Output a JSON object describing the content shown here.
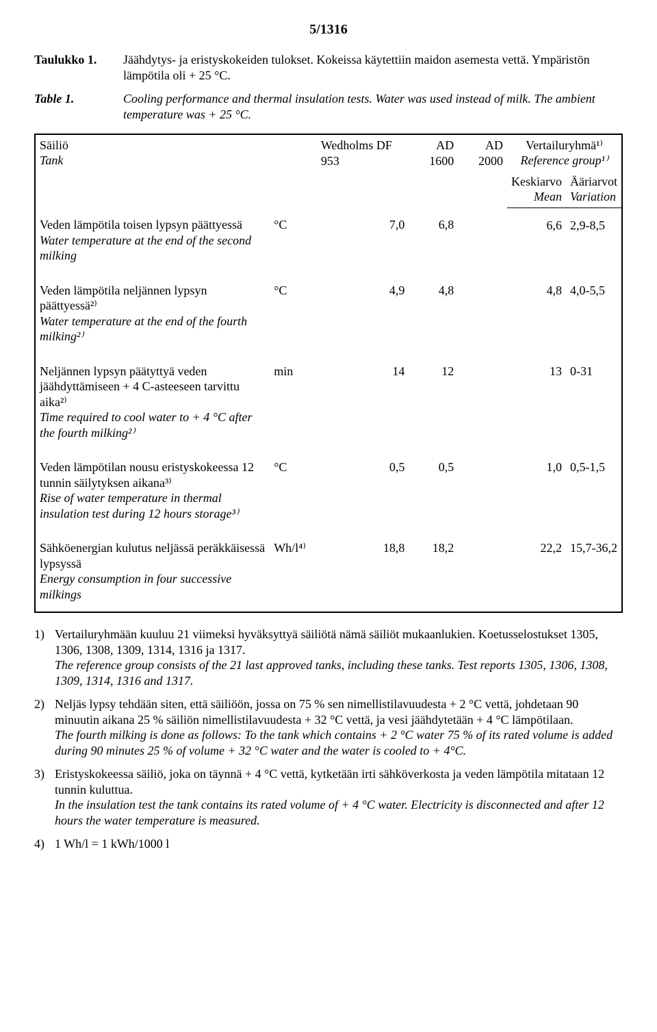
{
  "page_number": "5/1316",
  "captions": [
    {
      "label": "Taulukko 1.",
      "text": "Jäähdytys- ja eristyskokeiden tulokset. Kokeissa käytettiin maidon asemesta vettä. Ympäristön lämpötila oli + 25 °C.",
      "italic": false
    },
    {
      "label": "Table 1.",
      "text": "Cooling performance and thermal insulation tests. Water was used instead of milk. The ambient temperature was + 25 °C.",
      "italic": true
    }
  ],
  "header": {
    "tank_fi": "Säiliö",
    "tank_en": "Tank",
    "col1": "Wedholms DF 953",
    "col2": "AD 1600",
    "col3": "AD 2000",
    "ref_fi": "Vertailuryhmä¹⁾",
    "ref_en": "Reference group¹⁾",
    "mean_fi": "Keskiarvo",
    "mean_en": "Mean",
    "var_fi": "Ääriarvot",
    "var_en": "Variation"
  },
  "rows": [
    {
      "desc_fi": "Veden lämpötila toisen lypsyn päättyessä",
      "desc_en": "Water temperature at the end of the second milking",
      "unit": "°C",
      "v1": "7,0",
      "v2": "6,8",
      "mean": "6,6",
      "var": "2,9-8,5"
    },
    {
      "desc_fi": "Veden lämpötila neljännen lypsyn päättyessä²⁾",
      "desc_en": "Water temperature at the end of the fourth milking²⁾",
      "unit": "°C",
      "v1": "4,9",
      "v2": "4,8",
      "mean": "4,8",
      "var": "4,0-5,5"
    },
    {
      "desc_fi": "Neljännen lypsyn päätyttyä veden jäähdyttämiseen + 4 C-asteeseen tarvittu aika²⁾",
      "desc_en": "Time required to cool water to + 4 °C after the fourth milking²⁾",
      "unit": "min",
      "v1": "14",
      "v2": "12",
      "mean": "13",
      "var": "0-31"
    },
    {
      "desc_fi": "Veden lämpötilan nousu eristyskokeessa 12 tunnin säilytyksen aikana³⁾",
      "desc_en": "Rise of water temperature in thermal insulation test during 12 hours storage³⁾",
      "unit": "°C",
      "v1": "0,5",
      "v2": "0,5",
      "mean": "1,0",
      "var": "0,5-1,5"
    },
    {
      "desc_fi": "Sähköenergian kulutus neljässä peräkkäisessä lypsyssä",
      "desc_en": "Energy consumption in four successive milkings",
      "unit": "Wh/l⁴⁾",
      "v1": "18,8",
      "v2": "18,2",
      "mean": "22,2",
      "var": "15,7-36,2"
    }
  ],
  "footnotes": [
    {
      "num": "1)",
      "fi": "Vertailuryhmään kuuluu 21 viimeksi hyväksyttyä säiliötä nämä säiliöt mukaanlukien. Koetusselostukset 1305, 1306, 1308, 1309, 1314, 1316 ja 1317.",
      "en": "The reference group consists of the 21 last approved tanks, including these tanks. Test reports 1305, 1306, 1308, 1309, 1314, 1316 and 1317."
    },
    {
      "num": "2)",
      "fi": "Neljäs lypsy tehdään siten, että säiliöön, jossa on 75 % sen nimellistilavuudesta + 2 °C vettä, johdetaan 90 minuutin aikana 25 % säiliön nimellistilavuudesta + 32 °C vettä, ja vesi jäähdytetään + 4 °C lämpötilaan.",
      "en": "The fourth milking is done as follows: To the tank which contains + 2 °C water 75 % of its rated volume is added during 90 minutes 25 % of volume + 32 °C water and the water is cooled to + 4°C."
    },
    {
      "num": "3)",
      "fi": "Eristyskokeessa säiliö, joka on täynnä + 4 °C vettä, kytketään irti sähköverkosta ja veden lämpötila mitataan 12 tunnin kuluttua.",
      "en": "In the insulation test the tank contains its rated volume of + 4 °C water. Electricity is disconnected and after 12 hours the water temperature is measured."
    },
    {
      "num": "4)",
      "fi": "1 Wh/l = 1 kWh/1000 l",
      "en": ""
    }
  ]
}
